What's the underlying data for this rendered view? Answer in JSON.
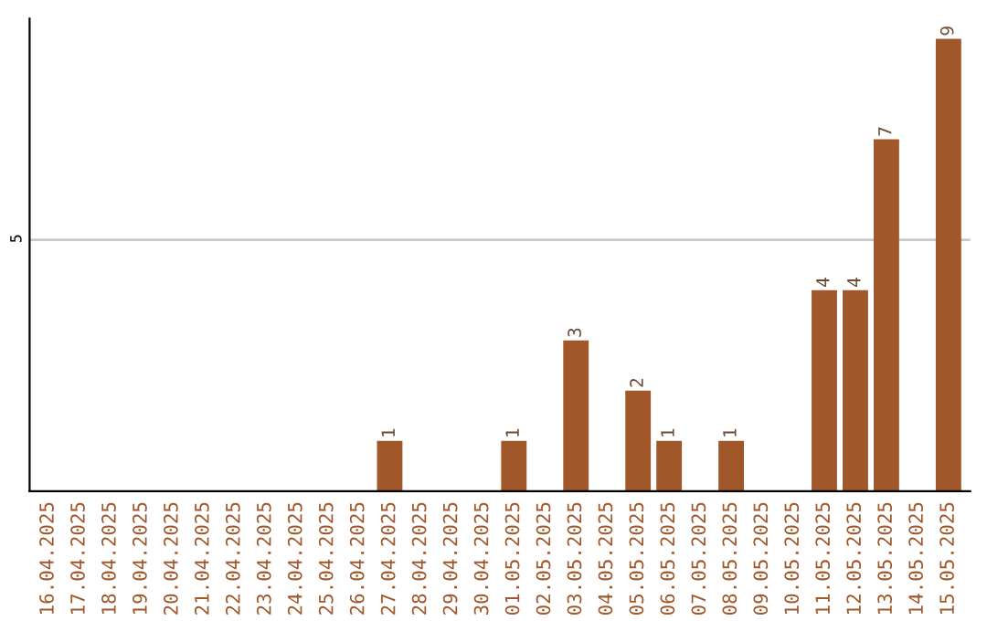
{
  "chart_data": {
    "type": "bar",
    "categories": [
      "16.04.2025",
      "17.04.2025",
      "18.04.2025",
      "19.04.2025",
      "20.04.2025",
      "21.04.2025",
      "22.04.2025",
      "23.04.2025",
      "24.04.2025",
      "25.04.2025",
      "26.04.2025",
      "27.04.2025",
      "28.04.2025",
      "29.04.2025",
      "30.04.2025",
      "01.05.2025",
      "02.05.2025",
      "03.05.2025",
      "04.05.2025",
      "05.05.2025",
      "06.05.2025",
      "07.05.2025",
      "08.05.2025",
      "09.05.2025",
      "10.05.2025",
      "11.05.2025",
      "12.05.2025",
      "13.05.2025",
      "14.05.2025",
      "15.05.2025"
    ],
    "values": [
      0,
      0,
      0,
      0,
      0,
      0,
      0,
      0,
      0,
      0,
      0,
      1,
      0,
      0,
      0,
      1,
      0,
      3,
      0,
      2,
      1,
      0,
      1,
      0,
      0,
      4,
      4,
      7,
      0,
      9
    ],
    "value_labels": [
      null,
      null,
      null,
      null,
      null,
      null,
      null,
      null,
      null,
      null,
      null,
      "1",
      null,
      null,
      null,
      "1",
      null,
      "3",
      null,
      "2",
      "1",
      null,
      "1",
      null,
      null,
      "4",
      "4",
      "7",
      null,
      "9"
    ],
    "color": "#a0572a",
    "ylim": [
      0,
      9.4
    ],
    "yticks": [
      5
    ],
    "grid": "y",
    "legend": false
  }
}
